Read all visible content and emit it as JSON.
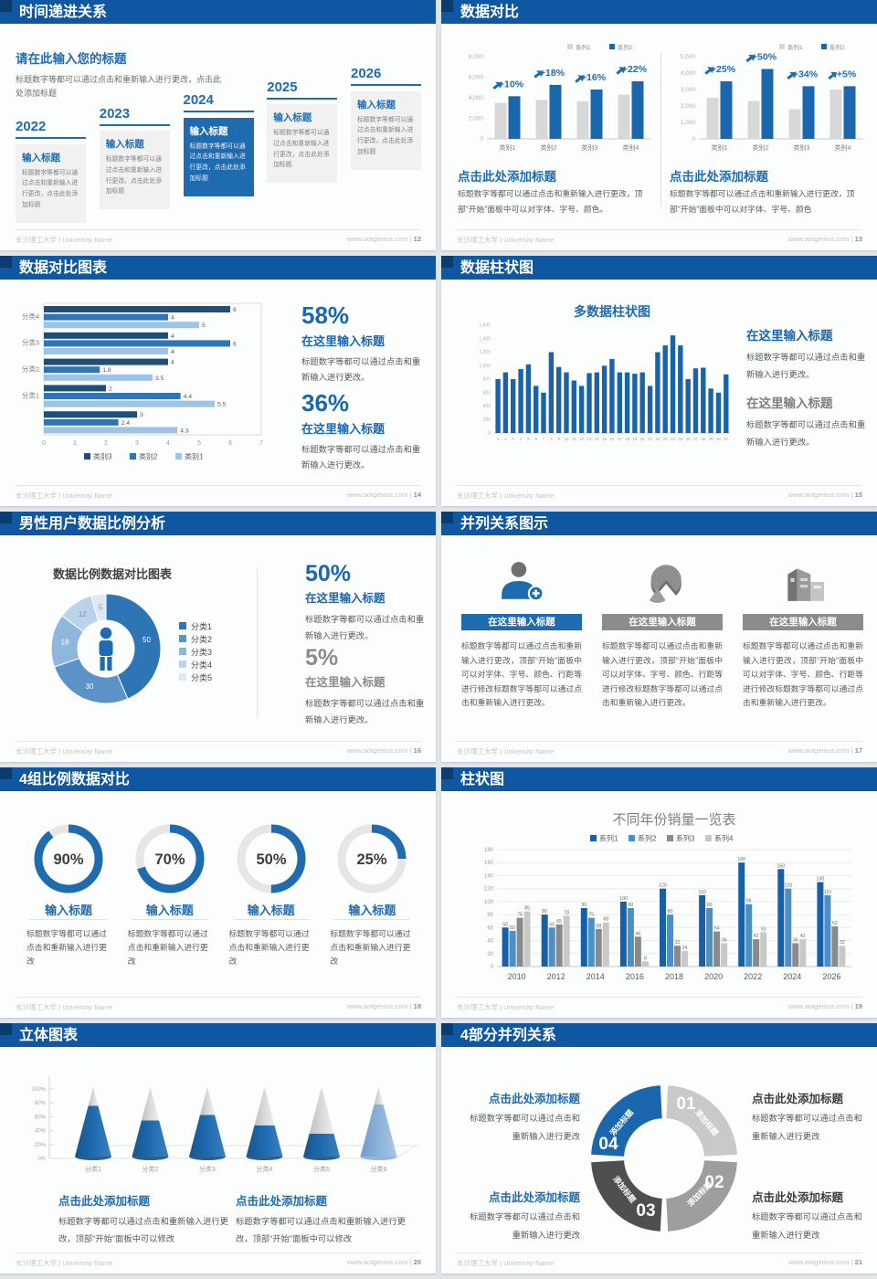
{
  "footer": {
    "org": "长沙理工大学 | University Name",
    "site": "www.aotgenius.com"
  },
  "slides": [
    {
      "page": "12",
      "title": "时间递进关系",
      "intro": {
        "title": "请在此输入您的标题",
        "body": "标题数字等都可以通过点击和重新输入进行更改，点击此处添加标题"
      },
      "milestones": [
        {
          "year": "2022",
          "title": "输入标题",
          "body": "标题数字等都可以通过点击和重新输入进行更改，点击此处添加标题",
          "active": false
        },
        {
          "year": "2023",
          "title": "输入标题",
          "body": "标题数字等都可以通过点击和重新输入进行更改，点击此处添加标题",
          "active": false
        },
        {
          "year": "2024",
          "title": "输入标题",
          "body": "标题数字等都可以通过点击和重新输入进行更改，点击此处添加标题",
          "active": true
        },
        {
          "year": "2025",
          "title": "输入标题",
          "body": "标题数字等都可以通过点击和重新输入进行更改，点击此处添加标题",
          "active": false
        },
        {
          "year": "2026",
          "title": "输入标题",
          "body": "标题数字等都可以通过点击和重新输入进行更改，点击此处添加标题",
          "active": false
        }
      ]
    },
    {
      "page": "13",
      "title": "数据对比",
      "panels": [
        {
          "heading": "点击此处添加标题",
          "body": "标题数字等都可以通过点击和重新输入进行更改，顶部“开始”面板中可以对字体、字号、颜色。",
          "chart_data": {
            "type": "bar",
            "categories": [
              "类别1",
              "类别2",
              "类别3",
              "类别4"
            ],
            "series": [
              {
                "name": "系列1",
                "color": "#d8d8d8",
                "values": [
                  3500,
                  3800,
                  3650,
                  4300
                ]
              },
              {
                "name": "系列2",
                "color": "#1b67ae",
                "values": [
                  4150,
                  5250,
                  4800,
                  5600
                ]
              }
            ],
            "growth_labels": [
              "+10%",
              "+18%",
              "+16%",
              "+22%"
            ],
            "ylim": [
              0,
              8000
            ],
            "ystep": 2000
          }
        },
        {
          "heading": "点击此处添加标题",
          "body": "标题数字等都可以通过点击和重新输入进行更改，顶部“开始”面板中可以对字体、字号、颜色",
          "chart_data": {
            "type": "bar",
            "categories": [
              "类别1",
              "类别2",
              "类别3",
              "类别4"
            ],
            "series": [
              {
                "name": "系列1",
                "color": "#d8d8d8",
                "values": [
                  2500,
                  2300,
                  1800,
                  3000
                ]
              },
              {
                "name": "系列2",
                "color": "#1b67ae",
                "values": [
                  3500,
                  4250,
                  3200,
                  3200
                ]
              }
            ],
            "growth_labels": [
              "+25%",
              "+50%",
              "+34%",
              "+5%"
            ],
            "ylim": [
              0,
              5000
            ],
            "ystep": 1000
          }
        }
      ]
    },
    {
      "page": "14",
      "title": "数据对比图表",
      "chart_data": {
        "type": "bar",
        "orientation": "horizontal",
        "xlim": [
          0,
          7
        ],
        "groups": [
          "分类4",
          "分类3",
          "分类2",
          "分类1",
          ""
        ],
        "series": [
          {
            "name": "类别3",
            "color": "#1f4e79",
            "values": [
              6,
              4,
              4,
              2,
              3
            ]
          },
          {
            "name": "类别2",
            "color": "#2e75b6",
            "values": [
              4,
              6,
              1.8,
              4.4,
              2.4
            ]
          },
          {
            "name": "类别1",
            "color": "#9dc3e6",
            "values": [
              5,
              4,
              3.5,
              5.5,
              4.3
            ]
          }
        ]
      },
      "stats": [
        {
          "value": "58%",
          "title": "在这里输入标题",
          "body": "标题数字等都可以通过点击和重新输入进行更改。",
          "color": "#1b67ae"
        },
        {
          "value": "36%",
          "title": "在这里输入标题",
          "body": "标题数字等都可以通过点击和重新输入进行更改。",
          "color": "#1b67ae"
        }
      ]
    },
    {
      "page": "15",
      "title": "数据柱状图",
      "chart_data": {
        "type": "bar",
        "title": "多数据柱状图",
        "ylim": [
          0,
          1600
        ],
        "ystep": 200,
        "x": [
          1,
          2,
          3,
          4,
          5,
          6,
          7,
          8,
          9,
          10,
          11,
          12,
          13,
          14,
          15,
          16,
          17,
          18,
          19,
          20,
          21,
          22,
          23,
          24,
          25,
          26,
          27,
          28,
          29,
          30,
          31
        ],
        "values": [
          800,
          900,
          800,
          950,
          1020,
          700,
          600,
          1200,
          980,
          900,
          780,
          700,
          890,
          900,
          1000,
          1100,
          900,
          900,
          880,
          900,
          700,
          1200,
          1300,
          1450,
          1300,
          800,
          960,
          970,
          660,
          600,
          870
        ]
      },
      "stats": [
        {
          "title": "在这里输入标题",
          "body": "标题数字等都可以通过点击和重新输入进行更改。",
          "color": "#1b67ae"
        },
        {
          "title": "在这里输入标题",
          "body": "标题数字等都可以通过点击和重新输入进行更改。",
          "color": "#7f7f7f"
        }
      ]
    },
    {
      "page": "16",
      "title": "男性用户数据比例分析",
      "chart_data": {
        "type": "pie",
        "title": "数据比例数据对比图表",
        "labels": [
          "分类1",
          "分类2",
          "分类3",
          "分类4",
          "分类5"
        ],
        "values": [
          50,
          30,
          18,
          12,
          5
        ],
        "colors": [
          "#2e75b6",
          "#5b93c9",
          "#8fb6dc",
          "#bad3ea",
          "#dde9f5"
        ]
      },
      "stats": [
        {
          "value": "50%",
          "title": "在这里输入标题",
          "body": "标题数字等都可以通过点击和重新输入进行更改。",
          "color": "#1b67ae"
        },
        {
          "value": "5%",
          "title": "在这里输入标题",
          "body": "标题数字等都可以通过点击和重新输入进行更改。",
          "color": "#8c8c8c"
        }
      ]
    },
    {
      "page": "17",
      "title": "并列关系图示",
      "columns": [
        {
          "icon": "person-plus-icon",
          "accent": true,
          "title": "在这里输入标题",
          "body": "标题数字等都可以通过点击和重新输入进行更改，顶部“开始”面板中可以对字体、字号、颜色、行距等进行修改标题数字等都可以通过点击和重新输入进行更改。"
        },
        {
          "icon": "pie-3d-icon",
          "accent": false,
          "title": "在这里输入标题",
          "body": "标题数字等都可以通过点击和重新输入进行更改，顶部“开始”面板中可以对字体、字号、颜色、行距等进行修改标题数字等都可以通过点击和重新输入进行更改。"
        },
        {
          "icon": "building-icon",
          "accent": false,
          "title": "在这里输入标题",
          "body": "标题数字等都可以通过点击和重新输入进行更改，顶部“开始”面板中可以对字体、字号、颜色、行距等进行修改标题数字等都可以通过点击和重新输入进行更改。"
        }
      ]
    },
    {
      "page": "18",
      "title": "4组比例数据对比",
      "gauges": [
        {
          "value": 90,
          "label": "90%",
          "title": "输入标题",
          "body": "标题数字等都可以通过点击和重新输入进行更改"
        },
        {
          "value": 70,
          "label": "70%",
          "title": "输入标题",
          "body": "标题数字等都可以通过点击和重新输入进行更改"
        },
        {
          "value": 50,
          "label": "50%",
          "title": "输入标题",
          "body": "标题数字等都可以通过点击和重新输入进行更改"
        },
        {
          "value": 25,
          "label": "25%",
          "title": "输入标题",
          "body": "标题数字等都可以通过点击和重新输入进行更改"
        }
      ]
    },
    {
      "page": "19",
      "title": "柱状图",
      "chart_data": {
        "type": "bar",
        "title": "不同年份销量一览表",
        "ylim": [
          0,
          180
        ],
        "ystep": 20,
        "categories": [
          "2010",
          "2012",
          "2014",
          "2016",
          "2018",
          "2020",
          "2022",
          "2024",
          "2026"
        ],
        "series": [
          {
            "name": "系列1",
            "color": "#1660a8",
            "values": [
              60,
              80,
              90,
              100,
              120,
              110,
              160,
              150,
              130
            ]
          },
          {
            "name": "系列2",
            "color": "#4b8fc6",
            "values": [
              55,
              60,
              75,
              90,
              80,
              90,
              96,
              120,
              110
            ]
          },
          {
            "name": "系列3",
            "color": "#8a8a8a",
            "values": [
              75,
              65,
              58,
              46,
              32,
              54,
              42,
              36,
              62
            ]
          },
          {
            "name": "系列4",
            "color": "#c8c8c8",
            "values": [
              85,
              78,
              68,
              8,
              24,
              36,
              53,
              42,
              32
            ]
          }
        ]
      }
    },
    {
      "page": "20",
      "title": "立体图表",
      "chart_data": {
        "type": "cone",
        "ylim": [
          0,
          100
        ],
        "ystep": 20,
        "categories": [
          "分类1",
          "分类2",
          "分类3",
          "分类4",
          "分类5",
          "分类6"
        ],
        "values": [
          73,
          52,
          60,
          45,
          33,
          75
        ]
      },
      "notes": [
        {
          "title": "点击此处添加标题",
          "body": "标题数字等都可以通过点击和重新输入进行更改，顶部“开始”面板中可以修改"
        },
        {
          "title": "点击此处添加标题",
          "body": "标题数字等都可以通过点击和重新输入进行更改，顶部“开始”面板中可以修改"
        }
      ]
    },
    {
      "page": "21",
      "title": "4部分并列关系",
      "wheel": [
        {
          "num": "01",
          "label": "添加标题",
          "color": "#c9c9c9"
        },
        {
          "num": "02",
          "label": "添加标题",
          "color": "#9e9e9e"
        },
        {
          "num": "03",
          "label": "添加标题",
          "color": "#4f4f4f"
        },
        {
          "num": "04",
          "label": "添加标题",
          "color": "#1b67ae"
        }
      ],
      "notes": [
        {
          "title": "点击此处添加标题",
          "body": "标题数字等都可以通过点击和重新输入进行更改",
          "accent": true
        },
        {
          "title": "点击此处添加标题",
          "body": "标题数字等都可以通过点击和重新输入进行更改",
          "accent": false
        },
        {
          "title": "点击此处添加标题",
          "body": "标题数字等都可以通过点击和重新输入进行更改",
          "accent": true
        },
        {
          "title": "点击此处添加标题",
          "body": "标题数字等都可以通过点击和重新输入进行更改",
          "accent": false
        }
      ]
    }
  ]
}
